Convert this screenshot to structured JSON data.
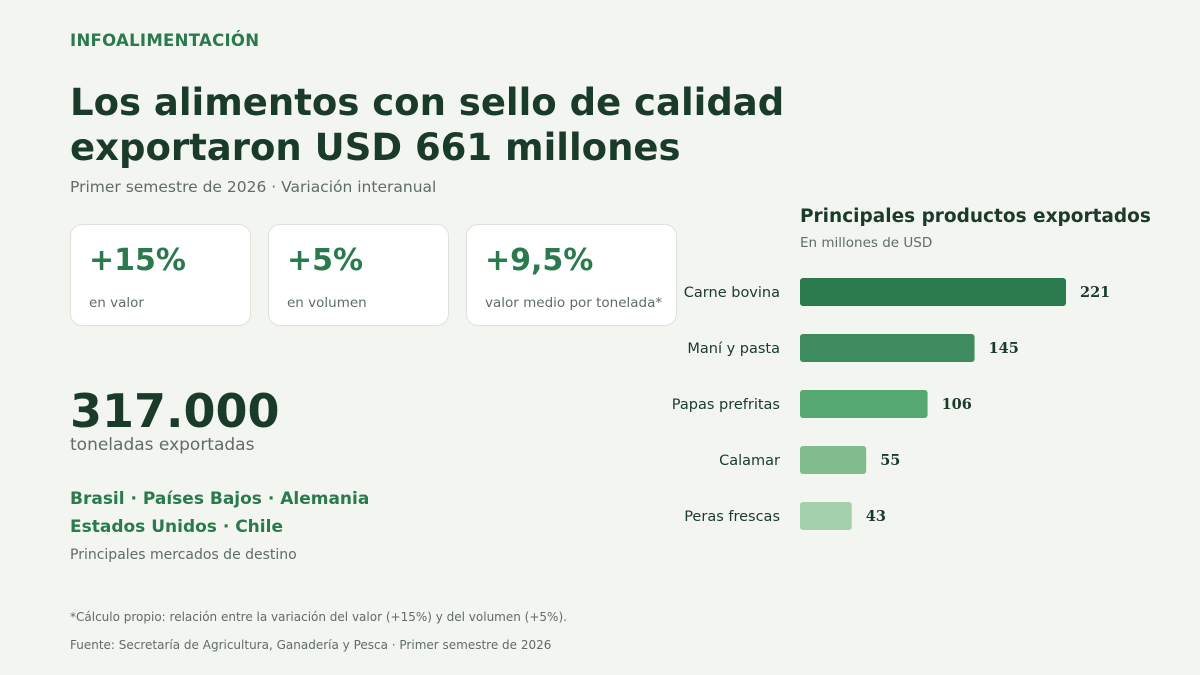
{
  "header": {
    "kicker": "INFOALIMENTACIÓN",
    "title_line1": "Los alimentos con sello de calidad",
    "title_line2": "exportaron USD 661 millones",
    "subtitle": "Primer semestre de 2026 · Variación interanual"
  },
  "cards": [
    {
      "value": "+15%",
      "label": "en valor"
    },
    {
      "value": "+5%",
      "label": "en volumen"
    },
    {
      "value": "+9,5%",
      "label": "valor medio por tonelada*"
    }
  ],
  "volume": {
    "value": "317.000",
    "label": "toneladas exportadas"
  },
  "markets": {
    "line1": "Brasil · Países Bajos · Alemania",
    "line2": "Estados Unidos · Chile",
    "label": "Principales mercados de destino"
  },
  "chart_data": {
    "type": "bar",
    "orientation": "horizontal",
    "title": "Principales productos exportados",
    "subtitle": "En millones de USD",
    "categories": [
      "Carne bovina",
      "Maní y pasta",
      "Papas prefritas",
      "Calamar",
      "Peras frescas"
    ],
    "values": [
      221,
      145,
      106,
      55,
      43
    ],
    "colors": [
      "#2a7a4e",
      "#3d8b5f",
      "#55a872",
      "#80bc8e",
      "#a5d0ae"
    ],
    "xlim": [
      0,
      221
    ],
    "grid": false
  },
  "footer": {
    "footnote": "*Cálculo propio: relación entre la variación del valor (+15%) y del volumen (+5%).",
    "source": "Fuente: Secretaría de Agricultura, Ganadería y Pesca · Primer semestre de 2026"
  }
}
